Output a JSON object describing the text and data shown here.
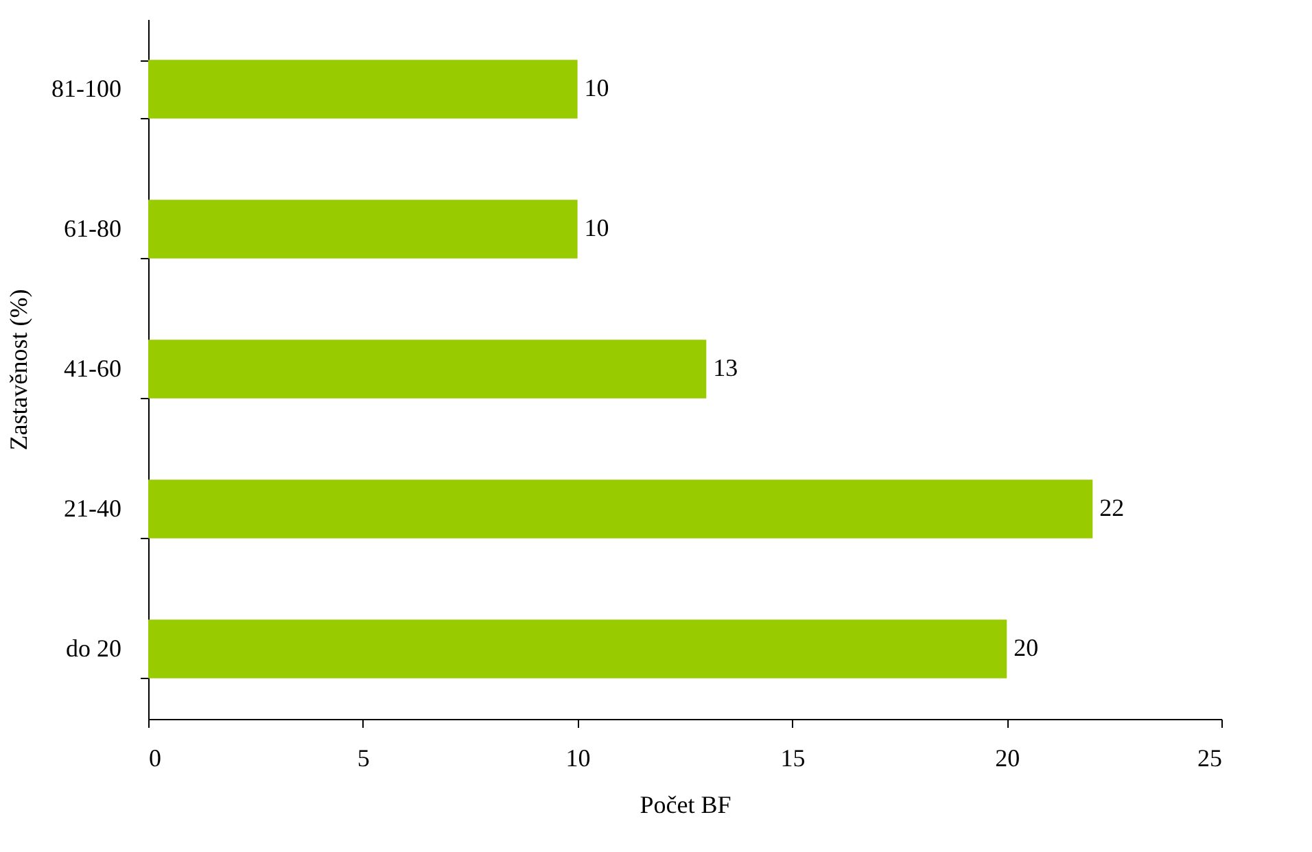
{
  "chart_data": {
    "type": "bar",
    "orientation": "horizontal",
    "xlabel": "Počet BF",
    "ylabel": "Zastavěnost (%)",
    "categories": [
      "81-100",
      "61-80",
      "41-60",
      "21-40",
      "do 20"
    ],
    "values": [
      10,
      10,
      13,
      22,
      20
    ],
    "color": "#99cc00",
    "xlim": [
      0,
      25
    ],
    "xticks": [
      0,
      5,
      10,
      15,
      20,
      25
    ],
    "grid": false,
    "data_labels": true
  }
}
